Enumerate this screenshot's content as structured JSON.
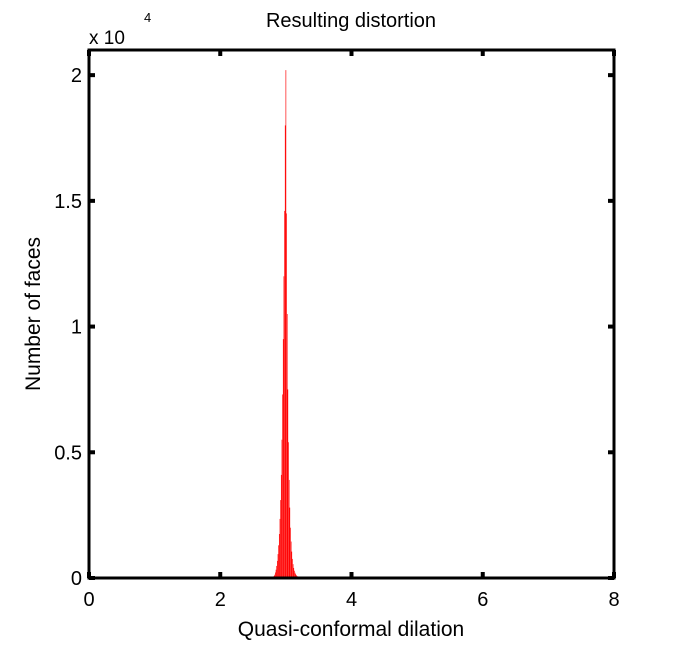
{
  "chart_data": {
    "type": "bar",
    "title": "Resulting distortion",
    "xlabel": "Quasi-conformal dilation",
    "ylabel": "Number of faces",
    "y_multiplier_label": "x 10",
    "y_multiplier_exponent": "4",
    "xlim": [
      0,
      8
    ],
    "ylim": [
      0,
      21000
    ],
    "xticks": [
      0,
      2,
      4,
      6,
      8
    ],
    "xtick_labels": [
      "0",
      "2",
      "4",
      "6",
      "8"
    ],
    "yticks": [
      0,
      5000,
      10000,
      15000,
      20000
    ],
    "ytick_labels": [
      "0",
      "0.5",
      "1",
      "1.5",
      "2"
    ],
    "grid": false,
    "bar_color": "#ff0000",
    "bin_width": 0.01,
    "x": [
      2.8,
      2.81,
      2.82,
      2.83,
      2.84,
      2.85,
      2.86,
      2.87,
      2.88,
      2.89,
      2.9,
      2.91,
      2.92,
      2.93,
      2.94,
      2.95,
      2.96,
      2.97,
      2.98,
      2.99,
      3.0,
      3.01,
      3.02,
      3.03,
      3.04,
      3.05,
      3.06,
      3.07,
      3.08,
      3.09,
      3.1,
      3.11,
      3.12,
      3.13,
      3.14,
      3.15,
      3.16,
      3.17,
      3.18,
      3.19,
      3.2,
      3.21,
      3.22,
      3.23,
      3.24,
      3.25
    ],
    "values": [
      20,
      40,
      80,
      130,
      220,
      330,
      480,
      680,
      950,
      1300,
      1750,
      2350,
      3100,
      4100,
      5500,
      7300,
      9500,
      12000,
      14600,
      18000,
      20200,
      14500,
      10500,
      7500,
      5400,
      3900,
      2800,
      2000,
      1450,
      1050,
      760,
      550,
      400,
      290,
      210,
      150,
      110,
      80,
      60,
      45,
      32,
      24,
      16,
      10,
      6,
      3
    ]
  }
}
